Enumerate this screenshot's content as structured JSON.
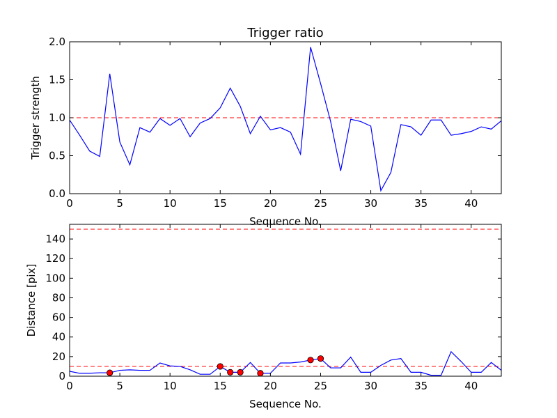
{
  "chart_data": [
    {
      "type": "line",
      "title": "Trigger ratio",
      "xlabel": "Sequence No.",
      "ylabel": "Trigger strength",
      "xlim": [
        0,
        43
      ],
      "ylim": [
        0,
        2.0
      ],
      "xticks": [
        "0",
        "5",
        "10",
        "15",
        "20",
        "25",
        "30",
        "35",
        "40"
      ],
      "yticks": [
        "0.0",
        "0.5",
        "1.0",
        "1.5",
        "2.0"
      ],
      "grid": false,
      "line_color": "#0000ff",
      "threshold_color": "#ff0000",
      "threshold": 1.0,
      "x": [
        0,
        1,
        2,
        3,
        4,
        5,
        6,
        7,
        8,
        9,
        10,
        11,
        12,
        13,
        14,
        15,
        16,
        17,
        18,
        19,
        20,
        21,
        22,
        23,
        24,
        25,
        26,
        27,
        28,
        29,
        30,
        31,
        32,
        33,
        34,
        35,
        36,
        37,
        38,
        39,
        40,
        41,
        42,
        43
      ],
      "values": [
        0.97,
        0.77,
        0.56,
        0.49,
        1.58,
        0.68,
        0.38,
        0.87,
        0.81,
        0.99,
        0.9,
        0.99,
        0.75,
        0.93,
        0.99,
        1.13,
        1.39,
        1.15,
        0.79,
        1.02,
        0.84,
        0.87,
        0.81,
        0.52,
        1.93,
        1.45,
        0.95,
        0.3,
        0.98,
        0.95,
        0.89,
        0.04,
        0.28,
        0.91,
        0.88,
        0.77,
        0.97,
        0.97,
        0.77,
        0.79,
        0.82,
        0.88,
        0.85,
        0.96
      ]
    },
    {
      "type": "line",
      "title": "",
      "xlabel": "Sequence No.",
      "ylabel": "Distance [pix]",
      "xlim": [
        0,
        43
      ],
      "ylim": [
        0,
        155
      ],
      "xticks": [
        "0",
        "5",
        "10",
        "15",
        "20",
        "25",
        "30",
        "35",
        "40"
      ],
      "yticks": [
        "0",
        "20",
        "40",
        "60",
        "80",
        "100",
        "120",
        "140"
      ],
      "grid": false,
      "line_color": "#0000ff",
      "marker_color": "#ff0000",
      "threshold_color": "#ff0000",
      "thresholds": [
        10,
        150
      ],
      "x": [
        0,
        1,
        2,
        3,
        4,
        5,
        6,
        7,
        8,
        9,
        10,
        11,
        12,
        13,
        14,
        15,
        16,
        17,
        18,
        19,
        20,
        21,
        22,
        23,
        24,
        25,
        26,
        27,
        28,
        29,
        30,
        31,
        32,
        33,
        34,
        35,
        36,
        37,
        38,
        39,
        40,
        41,
        42,
        43
      ],
      "values": [
        5,
        3,
        3,
        3.5,
        3.5,
        6,
        6.5,
        6,
        6,
        13.5,
        10.5,
        10,
        6.5,
        2,
        2,
        10,
        4,
        4,
        14,
        3,
        3,
        13.5,
        13.5,
        14.5,
        16.5,
        18,
        8.5,
        8.5,
        19.5,
        4,
        4,
        11,
        16.5,
        18,
        4,
        4,
        1,
        1,
        25,
        15,
        4,
        4,
        14,
        6
      ],
      "highlighted_points": [
        {
          "x": 4,
          "y": 3.5
        },
        {
          "x": 15,
          "y": 10
        },
        {
          "x": 16,
          "y": 4
        },
        {
          "x": 17,
          "y": 4
        },
        {
          "x": 19,
          "y": 3
        },
        {
          "x": 24,
          "y": 16.5
        },
        {
          "x": 25,
          "y": 18
        }
      ]
    }
  ]
}
